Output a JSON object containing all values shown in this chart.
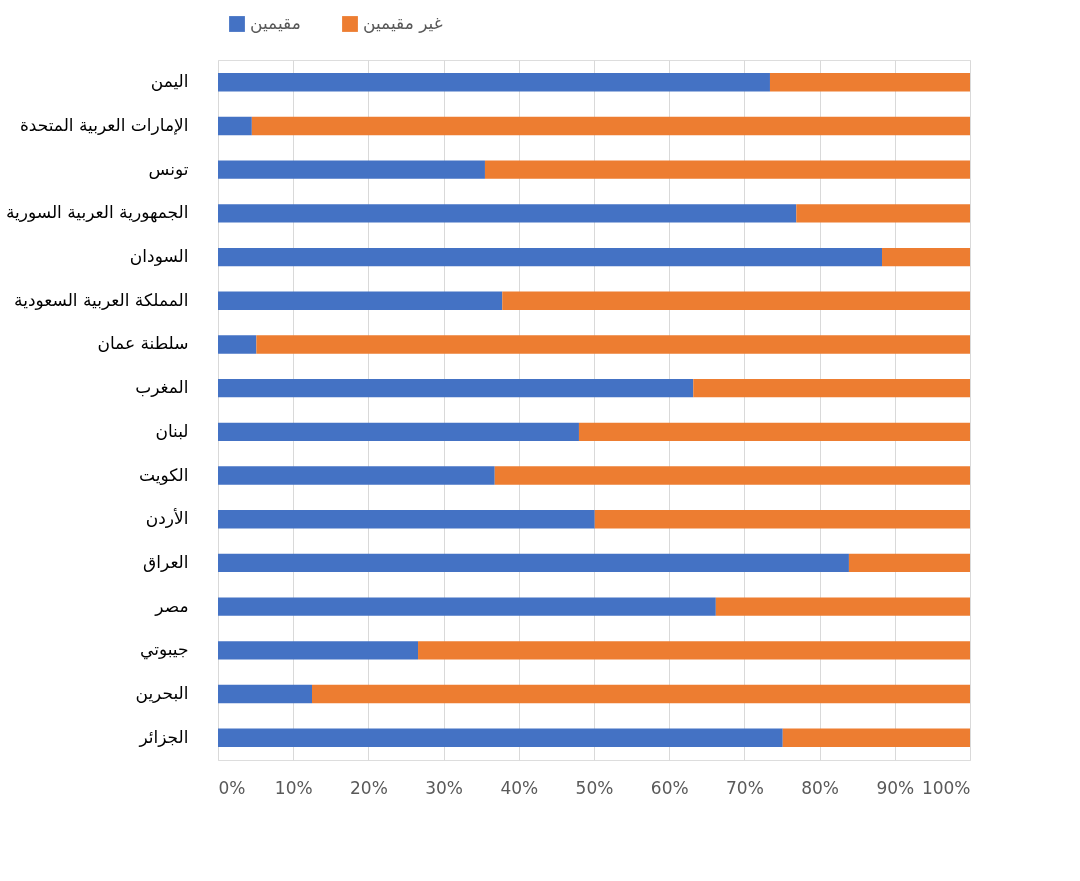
{
  "chart_data": {
    "type": "bar",
    "orientation": "horizontal",
    "stacked": true,
    "categories": [
      "اليمن",
      "الإمارات العربية المتحدة",
      "تونس",
      "الجمهورية العربية السورية",
      "السودان",
      "المملكة العربية السعودية",
      "سلطنة عمان",
      "المغرب",
      "لبنان",
      "الكويت",
      "الأردن",
      "العراق",
      "مصر",
      "جيبوتي",
      "البحرين",
      "الجزائر"
    ],
    "series": [
      {
        "name": "مقيمين",
        "color": "#4472c4",
        "values": [
          73.4,
          4.5,
          35.5,
          76.9,
          88.3,
          37.8,
          5.1,
          63.2,
          48.0,
          36.8,
          50.1,
          83.9,
          66.2,
          26.6,
          12.5,
          75.1
        ]
      },
      {
        "name": "غير مقيمين",
        "color": "#ed7d31",
        "values": [
          26.6,
          95.5,
          64.5,
          23.1,
          11.7,
          62.2,
          94.9,
          36.8,
          52.0,
          63.2,
          49.9,
          16.1,
          33.8,
          73.4,
          87.5,
          24.9
        ]
      }
    ],
    "xlim": [
      0,
      100
    ],
    "xticks": [
      {
        "value": 0,
        "label": "0%"
      },
      {
        "value": 10,
        "label": "10%"
      },
      {
        "value": 20,
        "label": "20%"
      },
      {
        "value": 30,
        "label": "30%"
      },
      {
        "value": 40,
        "label": "40%"
      },
      {
        "value": 50,
        "label": "50%"
      },
      {
        "value": 60,
        "label": "60%"
      },
      {
        "value": 70,
        "label": "70%"
      },
      {
        "value": 80,
        "label": "80%"
      },
      {
        "value": 90,
        "label": "90%"
      },
      {
        "value": 100,
        "label": "100%"
      }
    ],
    "grid": "x",
    "legend": "top"
  }
}
